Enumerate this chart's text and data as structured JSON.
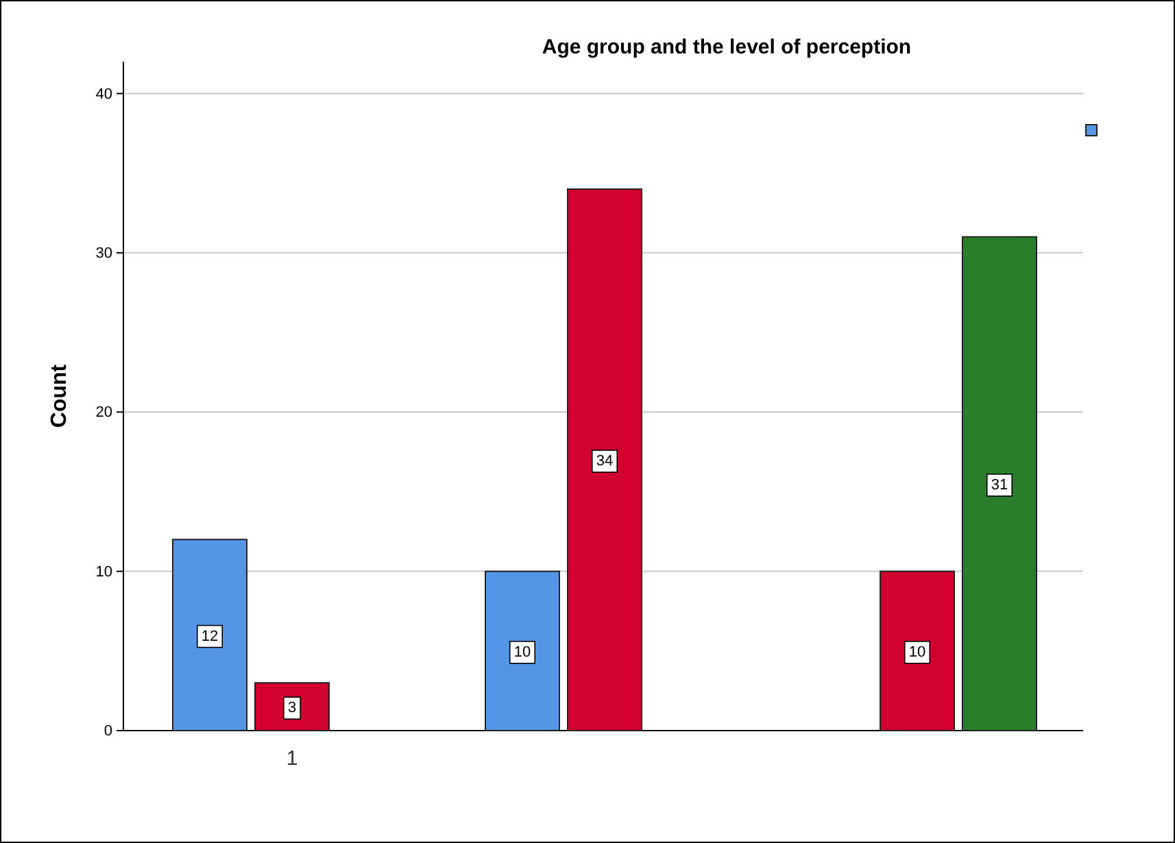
{
  "chart_data": {
    "type": "bar",
    "title": "Age group and the level of perception",
    "ylabel": "Count",
    "categories": [
      "1",
      null,
      null
    ],
    "series": [
      {
        "color": "#5595e5",
        "values": [
          12,
          10,
          null
        ]
      },
      {
        "color": "#d2002f",
        "values": [
          3,
          34,
          10
        ]
      },
      {
        "color": "#2a7d2a",
        "values": [
          null,
          null,
          31
        ]
      }
    ],
    "ylim": [
      0,
      42
    ],
    "yticks": [
      0,
      10,
      20,
      30,
      40
    ],
    "grid": "y",
    "data_labels": true
  }
}
